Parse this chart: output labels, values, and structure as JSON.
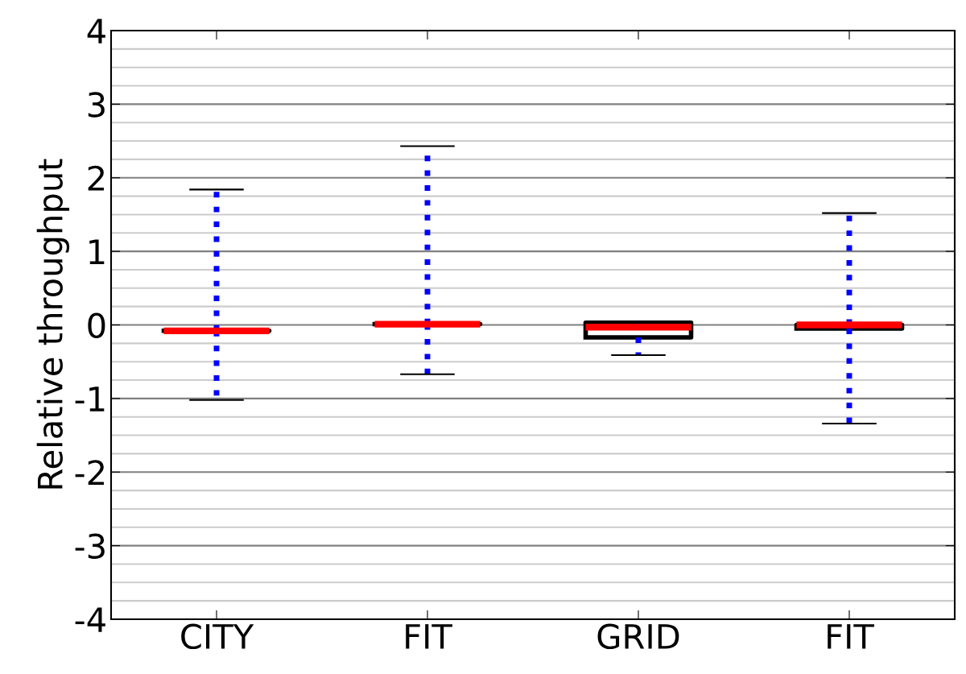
{
  "chart_data": {
    "type": "box",
    "ylabel": "Relative throughput",
    "categories": [
      "CITY",
      "FIT",
      "GRID",
      "FIT"
    ],
    "boxes": [
      {
        "low": -1.02,
        "q1": -0.08,
        "median": -0.08,
        "q3": -0.08,
        "high": 1.84
      },
      {
        "low": -0.67,
        "q1": 0.01,
        "median": 0.01,
        "q3": 0.01,
        "high": 2.43
      },
      {
        "low": -0.41,
        "q1": -0.17,
        "median": -0.03,
        "q3": 0.03,
        "high": 0.03
      },
      {
        "low": -1.34,
        "q1": -0.05,
        "median": 0.0,
        "q3": 0.0,
        "high": 1.52
      }
    ],
    "ylim": [
      -4,
      4
    ],
    "yticks": [
      -4,
      -3,
      -2,
      -1,
      0,
      1,
      2,
      3,
      4
    ],
    "grid": "y",
    "line_style": "dotted"
  }
}
